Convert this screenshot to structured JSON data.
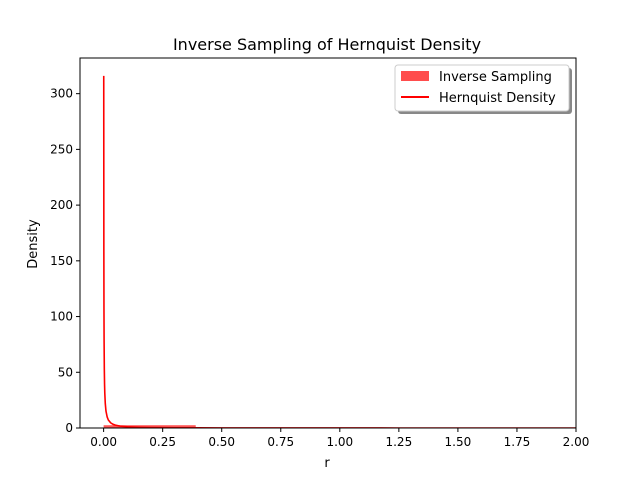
{
  "chart_data": {
    "type": "line",
    "title": "Inverse Sampling of Hernquist Density",
    "xlabel": "r",
    "ylabel": "Density",
    "xlim": [
      -0.1,
      2.0
    ],
    "ylim": [
      0,
      332
    ],
    "x_ticks": [
      "0.00",
      "0.25",
      "0.50",
      "0.75",
      "1.00",
      "1.25",
      "1.50",
      "1.75",
      "2.00"
    ],
    "y_ticks": [
      "0",
      "50",
      "100",
      "150",
      "200",
      "250",
      "300"
    ],
    "grid": false,
    "legend_position": "top-right",
    "legend": {
      "hist_label": "Inverse Sampling",
      "line_label": "Hernquist Density"
    },
    "colors": {
      "hist": "#ff4d4d",
      "line": "#ff0000"
    },
    "series": [
      {
        "name": "Inverse Sampling",
        "kind": "histogram",
        "bins": [
          {
            "x0": 0.0,
            "x1": 0.39,
            "value": 2.5
          },
          {
            "x0": 0.39,
            "x1": 2.0,
            "value": 0.3
          }
        ]
      },
      {
        "name": "Hernquist Density",
        "kind": "line",
        "x": [
          0.0005,
          0.001,
          0.0015,
          0.002,
          0.003,
          0.004,
          0.005,
          0.007,
          0.01,
          0.015,
          0.02,
          0.03,
          0.04,
          0.05,
          0.07,
          0.1,
          0.15,
          0.2,
          0.3,
          0.4,
          0.5,
          0.75,
          1.0,
          1.25,
          1.5,
          1.75,
          2.0
        ],
        "y": [
          316,
          158,
          106,
          79,
          52.5,
          39.2,
          31.2,
          22.1,
          15.2,
          9.9,
          7.2,
          4.6,
          3.3,
          2.6,
          1.7,
          1.1,
          0.66,
          0.43,
          0.22,
          0.13,
          0.085,
          0.034,
          0.016,
          0.009,
          0.005,
          0.003,
          0.002
        ]
      }
    ]
  }
}
